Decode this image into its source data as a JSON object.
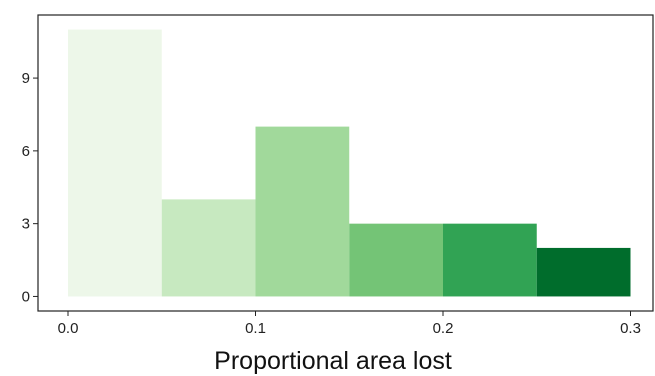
{
  "chart_data": {
    "type": "bar",
    "title": "",
    "xlabel": "Proportional area lost",
    "ylabel": "",
    "bins": [
      {
        "x0": 0.0,
        "x1": 0.05,
        "count": 11,
        "color": "#EDF7E9"
      },
      {
        "x0": 0.05,
        "x1": 0.1,
        "count": 4,
        "color": "#C7E9C0"
      },
      {
        "x0": 0.1,
        "x1": 0.15,
        "count": 7,
        "color": "#A1D99B"
      },
      {
        "x0": 0.15,
        "x1": 0.2,
        "count": 3,
        "color": "#74C476"
      },
      {
        "x0": 0.2,
        "x1": 0.25,
        "count": 3,
        "color": "#31A354"
      },
      {
        "x0": 0.25,
        "x1": 0.3,
        "count": 2,
        "color": "#006D2C"
      }
    ],
    "x_ticks": [
      {
        "value": 0.0,
        "label": "0.0"
      },
      {
        "value": 0.1,
        "label": "0.1"
      },
      {
        "value": 0.2,
        "label": "0.2"
      },
      {
        "value": 0.3,
        "label": "0.3"
      }
    ],
    "y_ticks": [
      {
        "value": 0,
        "label": "0"
      },
      {
        "value": 3,
        "label": "3"
      },
      {
        "value": 6,
        "label": "6"
      },
      {
        "value": 9,
        "label": "9"
      }
    ],
    "xlim": [
      -0.016,
      0.312
    ],
    "ylim": [
      -0.6,
      11.6
    ],
    "grid": false,
    "legend": "none"
  }
}
